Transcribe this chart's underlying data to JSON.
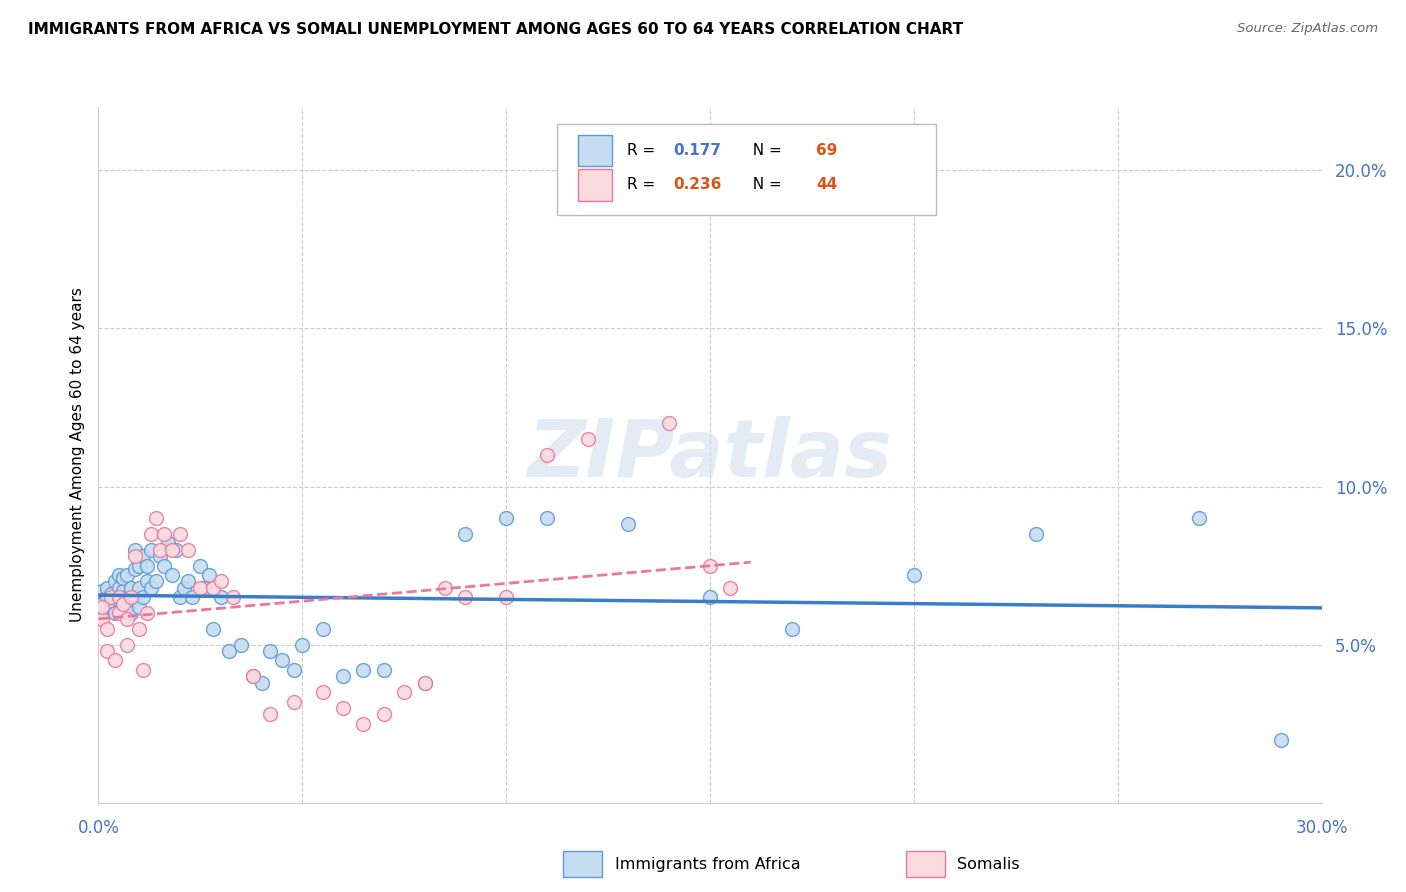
{
  "title": "IMMIGRANTS FROM AFRICA VS SOMALI UNEMPLOYMENT AMONG AGES 60 TO 64 YEARS CORRELATION CHART",
  "source": "Source: ZipAtlas.com",
  "ylabel": "Unemployment Among Ages 60 to 64 years",
  "xlim": [
    0,
    0.3
  ],
  "ylim": [
    0,
    0.22
  ],
  "background_color": "#ffffff",
  "watermark": "ZIPatlas",
  "legend_R1": "0.177",
  "legend_N1": "69",
  "legend_R2": "0.236",
  "legend_N2": "44",
  "blue_color": "#c6dcf0",
  "blue_edge": "#5b9bd5",
  "pink_color": "#fadadd",
  "pink_edge": "#e878a0",
  "blue_line_color": "#3a7dc9",
  "pink_line_color": "#e878a0",
  "axis_label_color": "#4472c4",
  "blue_scatter_x": [
    0.001,
    0.001,
    0.002,
    0.002,
    0.003,
    0.003,
    0.004,
    0.004,
    0.005,
    0.005,
    0.005,
    0.006,
    0.006,
    0.006,
    0.007,
    0.007,
    0.007,
    0.008,
    0.008,
    0.009,
    0.009,
    0.009,
    0.01,
    0.01,
    0.01,
    0.011,
    0.011,
    0.012,
    0.012,
    0.013,
    0.013,
    0.014,
    0.015,
    0.016,
    0.017,
    0.018,
    0.019,
    0.02,
    0.021,
    0.022,
    0.023,
    0.025,
    0.026,
    0.027,
    0.028,
    0.03,
    0.032,
    0.035,
    0.038,
    0.04,
    0.042,
    0.045,
    0.048,
    0.05,
    0.055,
    0.06,
    0.065,
    0.07,
    0.08,
    0.09,
    0.1,
    0.11,
    0.13,
    0.15,
    0.17,
    0.2,
    0.23,
    0.27,
    0.29
  ],
  "blue_scatter_y": [
    0.063,
    0.067,
    0.065,
    0.068,
    0.062,
    0.066,
    0.06,
    0.07,
    0.064,
    0.068,
    0.072,
    0.063,
    0.067,
    0.071,
    0.065,
    0.072,
    0.062,
    0.06,
    0.068,
    0.065,
    0.074,
    0.08,
    0.062,
    0.068,
    0.075,
    0.065,
    0.078,
    0.075,
    0.07,
    0.068,
    0.08,
    0.07,
    0.078,
    0.075,
    0.082,
    0.072,
    0.08,
    0.065,
    0.068,
    0.07,
    0.065,
    0.075,
    0.068,
    0.072,
    0.055,
    0.065,
    0.048,
    0.05,
    0.04,
    0.038,
    0.048,
    0.045,
    0.042,
    0.05,
    0.055,
    0.04,
    0.042,
    0.042,
    0.038,
    0.085,
    0.09,
    0.09,
    0.088,
    0.065,
    0.055,
    0.072,
    0.085,
    0.09,
    0.02
  ],
  "pink_scatter_x": [
    0.001,
    0.001,
    0.002,
    0.002,
    0.003,
    0.004,
    0.005,
    0.005,
    0.006,
    0.007,
    0.007,
    0.008,
    0.009,
    0.01,
    0.011,
    0.012,
    0.013,
    0.014,
    0.015,
    0.016,
    0.018,
    0.02,
    0.022,
    0.025,
    0.028,
    0.03,
    0.033,
    0.038,
    0.042,
    0.048,
    0.055,
    0.06,
    0.065,
    0.07,
    0.075,
    0.08,
    0.085,
    0.09,
    0.1,
    0.11,
    0.12,
    0.14,
    0.15,
    0.155
  ],
  "pink_scatter_y": [
    0.058,
    0.062,
    0.055,
    0.048,
    0.065,
    0.045,
    0.065,
    0.06,
    0.063,
    0.058,
    0.05,
    0.065,
    0.078,
    0.055,
    0.042,
    0.06,
    0.085,
    0.09,
    0.08,
    0.085,
    0.08,
    0.085,
    0.08,
    0.068,
    0.068,
    0.07,
    0.065,
    0.04,
    0.028,
    0.032,
    0.035,
    0.03,
    0.025,
    0.028,
    0.035,
    0.038,
    0.068,
    0.065,
    0.065,
    0.11,
    0.115,
    0.12,
    0.075,
    0.068
  ]
}
